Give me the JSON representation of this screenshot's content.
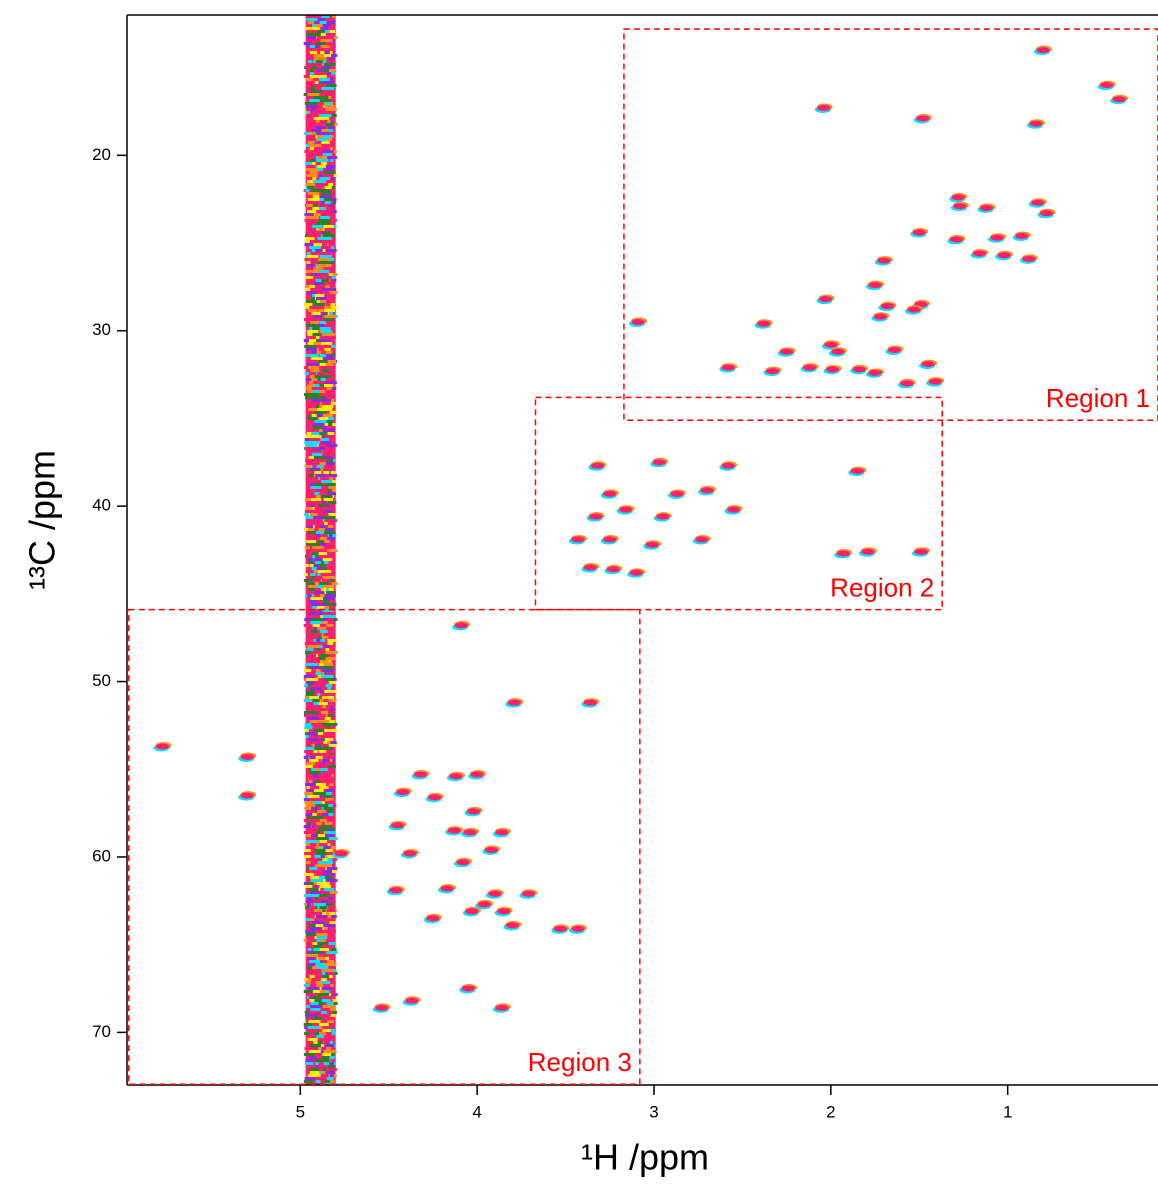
{
  "chart_data": {
    "type": "scatter",
    "x_label": "¹H /ppm",
    "y_label": "¹³C /ppm",
    "xlim": [
      5.98,
      0.15
    ],
    "ylim": [
      12,
      73
    ],
    "xticks": [
      5,
      4,
      3,
      2,
      1
    ],
    "yticks": [
      20,
      30,
      40,
      50,
      60,
      70
    ],
    "contour_colors": [
      "#ff1f6e",
      "#ff8c1a",
      "#ffee00",
      "#00e0ff",
      "#2a7f2a",
      "#8a2be2"
    ],
    "solvent_band": {
      "x": [
        4.97,
        4.8
      ]
    },
    "regions": [
      {
        "label": "Region 1",
        "x": [
          3.17,
          0.15
        ],
        "y": [
          12.8,
          35.1
        ],
        "color": "#ff0000"
      },
      {
        "label": "Region 2",
        "x": [
          3.67,
          1.37
        ],
        "y": [
          33.8,
          45.9
        ],
        "color": "#ff0000"
      },
      {
        "label": "Region 3",
        "x": [
          5.97,
          3.08
        ],
        "y": [
          45.9,
          72.96
        ],
        "color": "#ff0000"
      }
    ],
    "peaks": {
      "x": [
        0.8,
        0.44,
        0.37,
        2.04,
        1.48,
        0.84,
        1.28,
        1.27,
        1.12,
        0.83,
        0.78,
        1.5,
        1.29,
        1.06,
        0.92,
        1.16,
        1.02,
        0.88,
        1.7,
        1.75,
        2.03,
        1.68,
        1.49,
        1.53,
        1.72,
        3.09,
        2.38,
        2.25,
        2.0,
        1.96,
        1.64,
        2.58,
        2.33,
        2.12,
        1.99,
        1.84,
        1.75,
        1.45,
        1.57,
        1.41,
        3.32,
        2.97,
        1.85,
        2.58,
        3.25,
        2.87,
        2.7,
        3.33,
        3.16,
        2.95,
        2.55,
        3.43,
        3.25,
        3.01,
        2.73,
        3.36,
        3.23,
        3.1,
        1.93,
        1.79,
        1.49,
        4.09,
        3.79,
        3.36,
        5.78,
        5.3,
        5.3,
        4.32,
        4.12,
        4.0,
        4.42,
        4.24,
        4.45,
        4.13,
        4.04,
        3.86,
        4.02,
        4.38,
        3.92,
        4.08,
        4.77,
        4.46,
        4.17,
        3.9,
        3.71,
        4.03,
        3.96,
        3.85,
        4.25,
        3.8,
        3.53,
        3.43,
        4.54,
        4.37,
        4.05,
        3.86
      ],
      "y": [
        14.0,
        16.0,
        16.8,
        17.3,
        17.9,
        18.2,
        22.4,
        22.9,
        23.0,
        22.7,
        23.3,
        24.4,
        24.8,
        24.7,
        24.6,
        25.6,
        25.7,
        25.9,
        26.0,
        27.4,
        28.2,
        28.6,
        28.5,
        28.8,
        29.2,
        29.5,
        29.6,
        31.2,
        30.8,
        31.2,
        31.1,
        32.1,
        32.3,
        32.1,
        32.2,
        32.2,
        32.4,
        31.9,
        33.0,
        32.9,
        37.7,
        37.5,
        38.0,
        37.7,
        39.3,
        39.3,
        39.1,
        40.6,
        40.2,
        40.6,
        40.2,
        41.9,
        41.9,
        42.2,
        41.9,
        43.5,
        43.6,
        43.8,
        42.7,
        42.6,
        42.6,
        46.8,
        51.2,
        51.2,
        53.7,
        54.3,
        56.5,
        55.3,
        55.4,
        55.3,
        56.3,
        56.6,
        58.2,
        58.5,
        58.6,
        58.6,
        57.4,
        59.8,
        59.6,
        60.3,
        59.8,
        61.9,
        61.8,
        62.1,
        62.1,
        63.1,
        62.7,
        63.1,
        63.5,
        63.9,
        64.1,
        64.1,
        68.6,
        68.2,
        67.5,
        68.6
      ]
    }
  }
}
